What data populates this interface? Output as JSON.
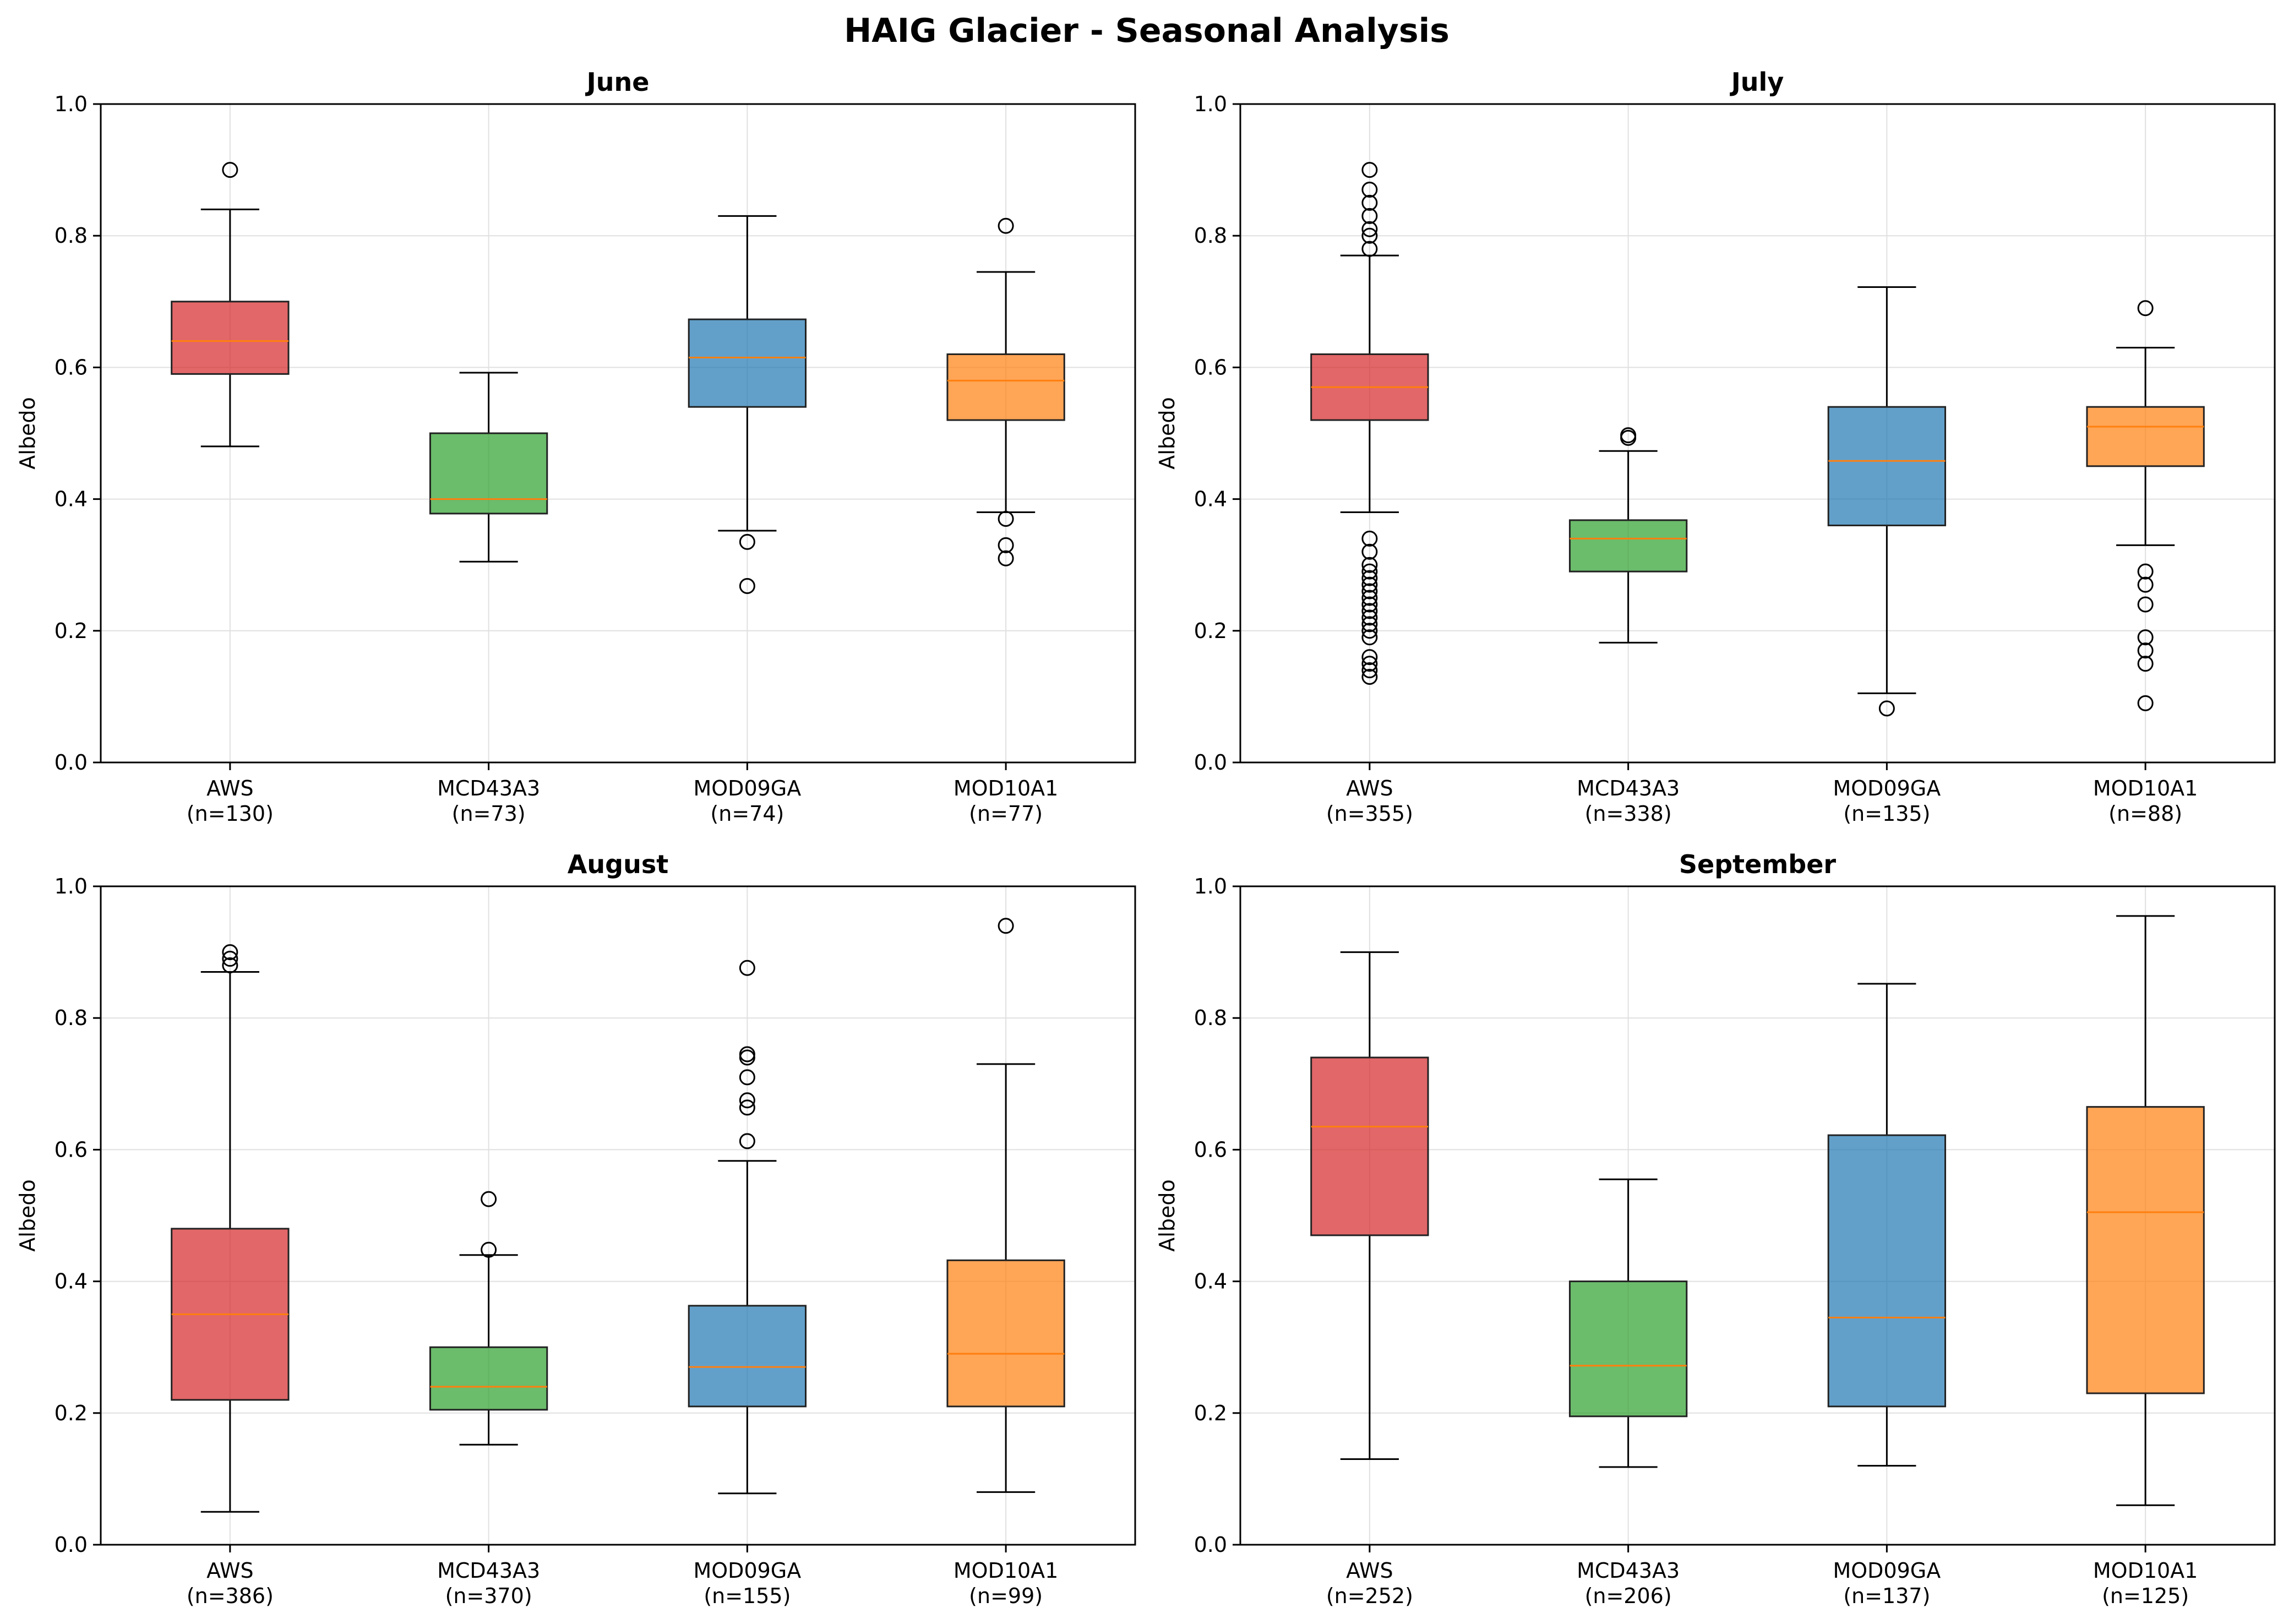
{
  "suptitle": "HAIG Glacier - Seasonal Analysis",
  "colors": {
    "AWS": "#d62728",
    "MCD43A3": "#2ca02c",
    "MOD09GA": "#1f77b4",
    "MOD10A1": "#ff7f0e",
    "median": "#ff7f0e",
    "grid": "#e0e0e0"
  },
  "chart_data": [
    {
      "type": "box",
      "title": "June",
      "ylabel": "Albedo",
      "ylim": [
        0.0,
        1.0
      ],
      "yticks": [
        "0.0",
        "0.2",
        "0.4",
        "0.6",
        "0.8",
        "1.0"
      ],
      "grid": true,
      "categories": [
        {
          "name": "AWS",
          "n": "(n=130)",
          "whislo": 0.48,
          "q1": 0.59,
          "med": 0.64,
          "q3": 0.7,
          "whishi": 0.84,
          "fliers": [
            0.9
          ]
        },
        {
          "name": "MCD43A3",
          "n": "(n=73)",
          "whislo": 0.305,
          "q1": 0.378,
          "med": 0.4,
          "q3": 0.5,
          "whishi": 0.592,
          "fliers": []
        },
        {
          "name": "MOD09GA",
          "n": "(n=74)",
          "whislo": 0.352,
          "q1": 0.54,
          "med": 0.615,
          "q3": 0.673,
          "whishi": 0.83,
          "fliers": [
            0.335,
            0.268
          ]
        },
        {
          "name": "MOD10A1",
          "n": "(n=77)",
          "whislo": 0.38,
          "q1": 0.52,
          "med": 0.58,
          "q3": 0.62,
          "whishi": 0.745,
          "fliers": [
            0.815,
            0.37,
            0.33,
            0.31
          ]
        }
      ]
    },
    {
      "type": "box",
      "title": "July",
      "ylabel": "Albedo",
      "ylim": [
        0.0,
        1.0
      ],
      "yticks": [
        "0.0",
        "0.2",
        "0.4",
        "0.6",
        "0.8",
        "1.0"
      ],
      "grid": true,
      "categories": [
        {
          "name": "AWS",
          "n": "(n=355)",
          "whislo": 0.38,
          "q1": 0.52,
          "med": 0.57,
          "q3": 0.62,
          "whishi": 0.77,
          "fliers": [
            0.9,
            0.87,
            0.85,
            0.83,
            0.81,
            0.8,
            0.78,
            0.34,
            0.32,
            0.3,
            0.29,
            0.28,
            0.27,
            0.26,
            0.25,
            0.24,
            0.23,
            0.22,
            0.21,
            0.2,
            0.19,
            0.16,
            0.15,
            0.14,
            0.13
          ]
        },
        {
          "name": "MCD43A3",
          "n": "(n=338)",
          "whislo": 0.182,
          "q1": 0.29,
          "med": 0.34,
          "q3": 0.368,
          "whishi": 0.473,
          "fliers": [
            0.497,
            0.493
          ]
        },
        {
          "name": "MOD09GA",
          "n": "(n=135)",
          "whislo": 0.105,
          "q1": 0.36,
          "med": 0.458,
          "q3": 0.54,
          "whishi": 0.722,
          "fliers": [
            0.082
          ]
        },
        {
          "name": "MOD10A1",
          "n": "(n=88)",
          "whislo": 0.33,
          "q1": 0.45,
          "med": 0.51,
          "q3": 0.54,
          "whishi": 0.63,
          "fliers": [
            0.69,
            0.29,
            0.27,
            0.24,
            0.19,
            0.17,
            0.15,
            0.09
          ]
        }
      ]
    },
    {
      "type": "box",
      "title": "August",
      "ylabel": "Albedo",
      "ylim": [
        0.0,
        1.0
      ],
      "yticks": [
        "0.0",
        "0.2",
        "0.4",
        "0.6",
        "0.8",
        "1.0"
      ],
      "grid": true,
      "categories": [
        {
          "name": "AWS",
          "n": "(n=386)",
          "whislo": 0.05,
          "q1": 0.22,
          "med": 0.35,
          "q3": 0.48,
          "whishi": 0.87,
          "fliers": [
            0.9,
            0.89,
            0.88
          ]
        },
        {
          "name": "MCD43A3",
          "n": "(n=370)",
          "whislo": 0.152,
          "q1": 0.205,
          "med": 0.24,
          "q3": 0.3,
          "whishi": 0.44,
          "fliers": [
            0.525,
            0.448
          ]
        },
        {
          "name": "MOD09GA",
          "n": "(n=155)",
          "whislo": 0.078,
          "q1": 0.21,
          "med": 0.27,
          "q3": 0.363,
          "whishi": 0.583,
          "fliers": [
            0.876,
            0.745,
            0.74,
            0.71,
            0.675,
            0.664,
            0.613
          ]
        },
        {
          "name": "MOD10A1",
          "n": "(n=99)",
          "whislo": 0.08,
          "q1": 0.21,
          "med": 0.29,
          "q3": 0.432,
          "whishi": 0.73,
          "fliers": [
            0.94
          ]
        }
      ]
    },
    {
      "type": "box",
      "title": "September",
      "ylabel": "Albedo",
      "ylim": [
        0.0,
        1.0
      ],
      "yticks": [
        "0.0",
        "0.2",
        "0.4",
        "0.6",
        "0.8",
        "1.0"
      ],
      "grid": true,
      "categories": [
        {
          "name": "AWS",
          "n": "(n=252)",
          "whislo": 0.13,
          "q1": 0.47,
          "med": 0.635,
          "q3": 0.74,
          "whishi": 0.9,
          "fliers": []
        },
        {
          "name": "MCD43A3",
          "n": "(n=206)",
          "whislo": 0.118,
          "q1": 0.195,
          "med": 0.272,
          "q3": 0.4,
          "whishi": 0.555,
          "fliers": []
        },
        {
          "name": "MOD09GA",
          "n": "(n=137)",
          "whislo": 0.12,
          "q1": 0.21,
          "med": 0.345,
          "q3": 0.622,
          "whishi": 0.852,
          "fliers": []
        },
        {
          "name": "MOD10A1",
          "n": "(n=125)",
          "whislo": 0.06,
          "q1": 0.23,
          "med": 0.505,
          "q3": 0.665,
          "whishi": 0.955,
          "fliers": []
        }
      ]
    }
  ]
}
